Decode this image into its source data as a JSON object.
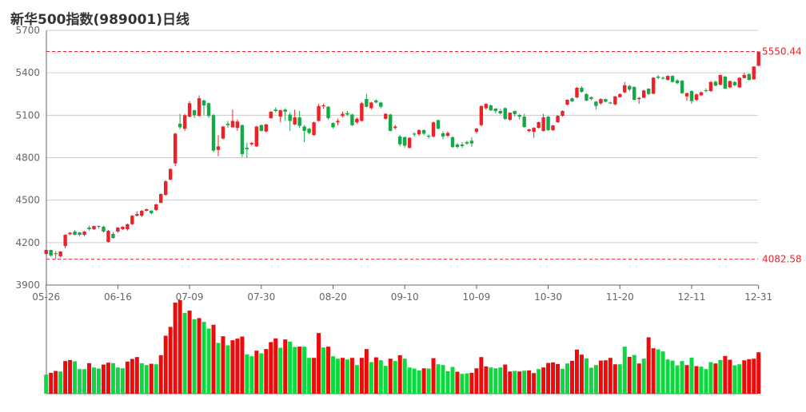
{
  "chart_data": {
    "type": "candlestick",
    "title": "新华500指数(989001)日线",
    "ylim": [
      3900,
      5700
    ],
    "yticks": [
      "5700",
      "5400",
      "5100",
      "4800",
      "4500",
      "4200",
      "3900"
    ],
    "xticks": [
      {
        "index": 0,
        "label": "05-26"
      },
      {
        "index": 15,
        "label": "06-16"
      },
      {
        "index": 30,
        "label": "07-09"
      },
      {
        "index": 45,
        "label": "07-30"
      },
      {
        "index": 60,
        "label": "08-20"
      },
      {
        "index": 75,
        "label": "09-10"
      },
      {
        "index": 90,
        "label": "10-09"
      },
      {
        "index": 105,
        "label": "10-30"
      },
      {
        "index": 120,
        "label": "11-20"
      },
      {
        "index": 135,
        "label": "12-11"
      },
      {
        "index": 149,
        "label": "12-31"
      }
    ],
    "max_marker": "5550.44",
    "min_marker": "4082.58",
    "colors": {
      "up": "#ee2129",
      "down": "#14a846",
      "vol_up": "#ee0a0a",
      "vol_down": "#0bd93f",
      "grid": "#cccccc",
      "axis": "#666666"
    },
    "ohlc_order": [
      "open",
      "close",
      "low",
      "high"
    ],
    "candles": [
      [
        4120,
        4148,
        4110,
        4152
      ],
      [
        4148,
        4108,
        4100,
        4150
      ],
      [
        4125,
        4120,
        4082.58,
        4140
      ],
      [
        4103,
        4137,
        4095,
        4140
      ],
      [
        4176,
        4255,
        4160,
        4258
      ],
      [
        4260,
        4270,
        4252,
        4275
      ],
      [
        4278,
        4255,
        4250,
        4290
      ],
      [
        4272,
        4255,
        4245,
        4275
      ],
      [
        4255,
        4278,
        4245,
        4282
      ],
      [
        4306,
        4295,
        4285,
        4320
      ],
      [
        4295,
        4317,
        4290,
        4320
      ],
      [
        4318,
        4312,
        4300,
        4320
      ],
      [
        4312,
        4278,
        4270,
        4320
      ],
      [
        4205,
        4283,
        4200,
        4290
      ],
      [
        4261,
        4233,
        4228,
        4275
      ],
      [
        4278,
        4306,
        4270,
        4310
      ],
      [
        4295,
        4312,
        4290,
        4315
      ],
      [
        4295,
        4330,
        4285,
        4335
      ],
      [
        4330,
        4390,
        4325,
        4395
      ],
      [
        4390,
        4402,
        4385,
        4420
      ],
      [
        4390,
        4425,
        4380,
        4430
      ],
      [
        4425,
        4436,
        4420,
        4440
      ],
      [
        4425,
        4408,
        4400,
        4430
      ],
      [
        4430,
        4470,
        4425,
        4475
      ],
      [
        4481,
        4543,
        4478,
        4548
      ],
      [
        4537,
        4633,
        4530,
        4640
      ],
      [
        4645,
        4720,
        4640,
        4725
      ],
      [
        4760,
        4970,
        4740,
        4975
      ],
      [
        5040,
        5015,
        5000,
        5110
      ],
      [
        5005,
        5100,
        4990,
        5110
      ],
      [
        5090,
        5185,
        5085,
        5200
      ],
      [
        5135,
        5100,
        5080,
        5140
      ],
      [
        5095,
        5220,
        5090,
        5240
      ],
      [
        5205,
        5170,
        5100,
        5210
      ],
      [
        5185,
        5095,
        5080,
        5190
      ],
      [
        5100,
        4850,
        4840,
        5110
      ],
      [
        4855,
        4880,
        4810,
        4960
      ],
      [
        4935,
        5020,
        4930,
        5025
      ],
      [
        5040,
        5030,
        5010,
        5060
      ],
      [
        5015,
        5060,
        5010,
        5140
      ],
      [
        5010,
        5055,
        4990,
        5070
      ],
      [
        5030,
        4825,
        4805,
        5035
      ],
      [
        4870,
        4860,
        4800,
        4905
      ],
      [
        4895,
        4905,
        4885,
        4910
      ],
      [
        4880,
        5020,
        4875,
        5025
      ],
      [
        5030,
        4990,
        4985,
        5035
      ],
      [
        4985,
        5035,
        4980,
        5040
      ],
      [
        5080,
        5125,
        5075,
        5130
      ],
      [
        5140,
        5130,
        5120,
        5155
      ],
      [
        5090,
        5135,
        5050,
        5140
      ],
      [
        5140,
        5125,
        5060,
        5150
      ],
      [
        5105,
        5060,
        4990,
        5120
      ],
      [
        5035,
        5085,
        5030,
        5140
      ],
      [
        5085,
        5025,
        5010,
        5130
      ],
      [
        5020,
        4990,
        4910,
        5030
      ],
      [
        5005,
        4975,
        4965,
        5010
      ],
      [
        4960,
        5050,
        4955,
        5055
      ],
      [
        5060,
        5165,
        5055,
        5180
      ],
      [
        5165,
        5170,
        5145,
        5180
      ],
      [
        5160,
        5080,
        5070,
        5165
      ],
      [
        5045,
        5015,
        5005,
        5050
      ],
      [
        5050,
        5060,
        5030,
        5075
      ],
      [
        5095,
        5110,
        5085,
        5125
      ],
      [
        5115,
        5105,
        5095,
        5130
      ],
      [
        5105,
        5030,
        5025,
        5110
      ],
      [
        5050,
        5075,
        5040,
        5085
      ],
      [
        5060,
        5185,
        5055,
        5195
      ],
      [
        5215,
        5160,
        5155,
        5250
      ],
      [
        5150,
        5190,
        5140,
        5195
      ],
      [
        5205,
        5190,
        5185,
        5212
      ],
      [
        5190,
        5160,
        5150,
        5195
      ],
      [
        5075,
        5110,
        5070,
        5115
      ],
      [
        5105,
        4990,
        4985,
        5110
      ],
      [
        5010,
        5020,
        5000,
        5030
      ],
      [
        4950,
        4895,
        4880,
        4960
      ],
      [
        4945,
        4885,
        4870,
        4950
      ],
      [
        4870,
        4940,
        4865,
        4945
      ],
      [
        4970,
        4965,
        4950,
        4980
      ],
      [
        4965,
        4995,
        4955,
        5000
      ],
      [
        4995,
        4970,
        4960,
        5000
      ],
      [
        4955,
        4950,
        4935,
        4965
      ],
      [
        4950,
        5050,
        4945,
        5055
      ],
      [
        5065,
        5005,
        5000,
        5070
      ],
      [
        4972,
        4950,
        4930,
        4985
      ],
      [
        4955,
        4975,
        4945,
        4985
      ],
      [
        4945,
        4875,
        4870,
        4950
      ],
      [
        4893,
        4876,
        4865,
        4905
      ],
      [
        4893,
        4882,
        4870,
        4910
      ],
      [
        4910,
        4900,
        4890,
        4920
      ],
      [
        4920,
        4900,
        4875,
        4945
      ],
      [
        4983,
        5005,
        4970,
        5010
      ],
      [
        5030,
        5165,
        5020,
        5170
      ],
      [
        5150,
        5180,
        5140,
        5185
      ],
      [
        5170,
        5135,
        5130,
        5175
      ],
      [
        5147,
        5130,
        5115,
        5150
      ],
      [
        5130,
        5113,
        5105,
        5145
      ],
      [
        5150,
        5074,
        5065,
        5155
      ],
      [
        5068,
        5118,
        5060,
        5120
      ],
      [
        5130,
        5108,
        5090,
        5132
      ],
      [
        5102,
        5090,
        5070,
        5110
      ],
      [
        5090,
        5017,
        5010,
        5110
      ],
      [
        4988,
        5000,
        4980,
        5005
      ],
      [
        4983,
        5011,
        4940,
        5015
      ],
      [
        5011,
        5051,
        5005,
        5055
      ],
      [
        4989,
        5085,
        4985,
        5110
      ],
      [
        5090,
        4995,
        4990,
        5095
      ],
      [
        4994,
        5028,
        4990,
        5030
      ],
      [
        5051,
        5096,
        5045,
        5100
      ],
      [
        5096,
        5130,
        5090,
        5135
      ],
      [
        5175,
        5209,
        5170,
        5212
      ],
      [
        5220,
        5198,
        5195,
        5225
      ],
      [
        5226,
        5294,
        5220,
        5300
      ],
      [
        5294,
        5265,
        5260,
        5305
      ],
      [
        5250,
        5203,
        5200,
        5255
      ],
      [
        5228,
        5215,
        5205,
        5232
      ],
      [
        5196,
        5166,
        5140,
        5200
      ],
      [
        5184,
        5214,
        5175,
        5220
      ],
      [
        5214,
        5196,
        5190,
        5218
      ],
      [
        5190,
        5186,
        5180,
        5195
      ],
      [
        5177,
        5233,
        5170,
        5236
      ],
      [
        5228,
        5250,
        5225,
        5255
      ],
      [
        5262,
        5312,
        5255,
        5335
      ],
      [
        5307,
        5281,
        5270,
        5315
      ],
      [
        5299,
        5209,
        5205,
        5305
      ],
      [
        5214,
        5222,
        5180,
        5230
      ],
      [
        5224,
        5275,
        5220,
        5280
      ],
      [
        5288,
        5250,
        5245,
        5290
      ],
      [
        5252,
        5365,
        5248,
        5370
      ],
      [
        5373,
        5365,
        5355,
        5385
      ],
      [
        5365,
        5362,
        5352,
        5375
      ],
      [
        5350,
        5378,
        5345,
        5382
      ],
      [
        5378,
        5335,
        5330,
        5382
      ],
      [
        5346,
        5326,
        5320,
        5355
      ],
      [
        5344,
        5256,
        5250,
        5348
      ],
      [
        5233,
        5256,
        5200,
        5260
      ],
      [
        5271,
        5200,
        5180,
        5275
      ],
      [
        5209,
        5247,
        5200,
        5255
      ],
      [
        5241,
        5262,
        5235,
        5268
      ],
      [
        5277,
        5272,
        5262,
        5290
      ],
      [
        5271,
        5335,
        5265,
        5340
      ],
      [
        5337,
        5309,
        5305,
        5345
      ],
      [
        5316,
        5384,
        5310,
        5388
      ],
      [
        5373,
        5288,
        5285,
        5378
      ],
      [
        5297,
        5341,
        5290,
        5345
      ],
      [
        5335,
        5312,
        5305,
        5340
      ],
      [
        5297,
        5365,
        5292,
        5370
      ],
      [
        5363,
        5384,
        5360,
        5400
      ],
      [
        5391,
        5350,
        5345,
        5395
      ],
      [
        5354,
        5444,
        5350,
        5446
      ],
      [
        5450,
        5550.44,
        5445,
        5550.44
      ]
    ],
    "volume_relative": [
      71,
      78,
      85,
      83,
      122,
      126,
      121,
      92,
      92,
      114,
      98,
      94,
      109,
      116,
      114,
      98,
      95,
      120,
      130,
      137,
      114,
      107,
      112,
      110,
      144,
      217,
      250,
      341,
      350,
      302,
      311,
      279,
      283,
      269,
      244,
      258,
      190,
      215,
      181,
      200,
      206,
      214,
      147,
      140,
      161,
      151,
      167,
      193,
      207,
      172,
      203,
      195,
      175,
      176,
      176,
      134,
      134,
      227,
      173,
      176,
      140,
      131,
      134,
      128,
      134,
      107,
      134,
      167,
      118,
      136,
      125,
      104,
      131,
      122,
      144,
      131,
      98,
      94,
      87,
      95,
      94,
      133,
      110,
      107,
      84,
      100,
      82,
      74,
      76,
      78,
      95,
      137,
      102,
      98,
      95,
      98,
      109,
      83,
      85,
      83,
      86,
      87,
      77,
      92,
      98,
      115,
      117,
      111,
      93,
      113,
      123,
      165,
      146,
      132,
      97,
      107,
      124,
      125,
      134,
      110,
      110,
      176,
      138,
      145,
      113,
      131,
      211,
      170,
      166,
      158,
      128,
      124,
      106,
      122,
      107,
      135,
      103,
      101,
      92,
      118,
      113,
      126,
      141,
      127,
      106,
      110,
      125,
      129,
      131,
      155
    ],
    "volume_colors": "grrgrrgggrggrrgggrrrggrgrrrrrgrgrggrgrgrrrggrgrrrgrggrggrrgrggrgrgrrgrggrgrggggrgrggggrggrrrrgggrrgrgrrgrrrrggrrrgggrrrrggrgrgrrggggggrgrgggrgrrggrrrrr"
  }
}
